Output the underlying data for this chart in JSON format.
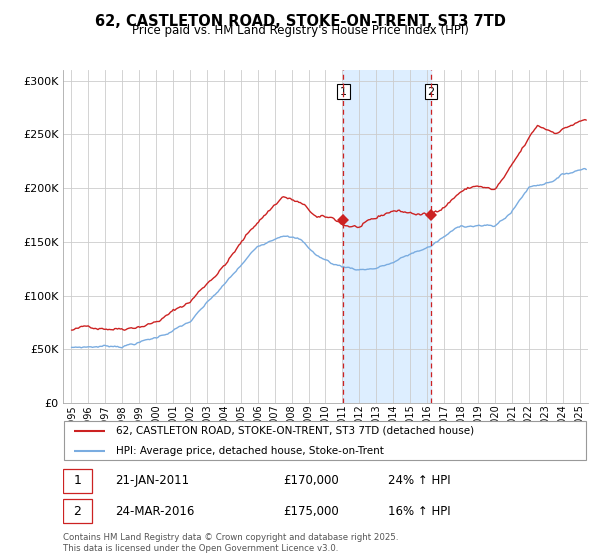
{
  "title": "62, CASTLETON ROAD, STOKE-ON-TRENT, ST3 7TD",
  "subtitle": "Price paid vs. HM Land Registry's House Price Index (HPI)",
  "legend_line1": "62, CASTLETON ROAD, STOKE-ON-TRENT, ST3 7TD (detached house)",
  "legend_line2": "HPI: Average price, detached house, Stoke-on-Trent",
  "footer": "Contains HM Land Registry data © Crown copyright and database right 2025.\nThis data is licensed under the Open Government Licence v3.0.",
  "sale1_date": "21-JAN-2011",
  "sale1_price": "£170,000",
  "sale1_hpi": "24% ↑ HPI",
  "sale2_date": "24-MAR-2016",
  "sale2_price": "£175,000",
  "sale2_hpi": "16% ↑ HPI",
  "sale1_x": 2011.054,
  "sale1_y": 170000,
  "sale2_x": 2016.23,
  "sale2_y": 175000,
  "vline1_x": 2011.054,
  "vline2_x": 2016.23,
  "shade_x1": 2011.054,
  "shade_x2": 2016.23,
  "ylim": [
    0,
    310000
  ],
  "xlim_min": 1994.5,
  "xlim_max": 2025.5,
  "red_color": "#cc2222",
  "blue_color": "#7aace0",
  "shade_color": "#ddeeff",
  "grid_color": "#cccccc",
  "bg_color": "#ffffff"
}
